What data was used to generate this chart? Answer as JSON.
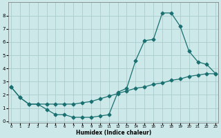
{
  "xlabel": "Humidex (Indice chaleur)",
  "background_color": "#cce8e8",
  "grid_color": "#aacccc",
  "line_color": "#1a7070",
  "line1_x": [
    0,
    1,
    2,
    3,
    4,
    5,
    6,
    7,
    8,
    9,
    10,
    11,
    12,
    13,
    14,
    15,
    16,
    17,
    18,
    19,
    20,
    21,
    22,
    23
  ],
  "line1_y": [
    2.6,
    1.8,
    1.3,
    1.3,
    0.9,
    0.5,
    0.5,
    0.3,
    0.3,
    0.3,
    0.4,
    0.5,
    2.2,
    2.5,
    4.6,
    6.1,
    6.2,
    8.2,
    8.2,
    7.2,
    5.3,
    4.5,
    4.3,
    3.6
  ],
  "line2_x": [
    0,
    1,
    2,
    3,
    4,
    5,
    6,
    7,
    8,
    9,
    10,
    11,
    12,
    13,
    14,
    15,
    16,
    17,
    18,
    19,
    20,
    21,
    22,
    23
  ],
  "line2_y": [
    2.6,
    1.8,
    1.3,
    1.3,
    1.3,
    1.3,
    1.3,
    1.3,
    1.4,
    1.5,
    1.7,
    1.9,
    2.1,
    2.3,
    2.5,
    2.6,
    2.8,
    2.9,
    3.1,
    3.2,
    3.4,
    3.5,
    3.6,
    3.6
  ],
  "xlim": [
    0,
    23
  ],
  "ylim": [
    0,
    9.0
  ],
  "yticks": [
    0,
    1,
    2,
    3,
    4,
    5,
    6,
    7,
    8
  ],
  "xticks": [
    0,
    1,
    2,
    3,
    4,
    5,
    6,
    7,
    8,
    9,
    10,
    11,
    12,
    13,
    14,
    15,
    16,
    17,
    18,
    19,
    20,
    21,
    22,
    23
  ]
}
